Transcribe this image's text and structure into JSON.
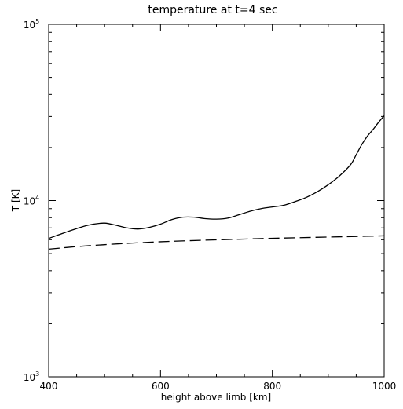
{
  "chart_data": {
    "type": "line",
    "title": "temperature at t=4 sec",
    "xlabel": "height above limb [km]",
    "ylabel": "T [K]",
    "xlim": [
      400,
      1000
    ],
    "ylim": [
      1000,
      100000
    ],
    "yscale": "log",
    "grid": false,
    "x_ticks": [
      400,
      600,
      800,
      1000
    ],
    "x_tick_labels": [
      "400",
      "600",
      "800",
      "1000"
    ],
    "y_ticks": [
      1000,
      10000,
      100000
    ],
    "y_tick_labels": [
      {
        "base": "10",
        "exp": "3"
      },
      {
        "base": "10",
        "exp": "4"
      },
      {
        "base": "10",
        "exp": "5"
      }
    ],
    "series": [
      {
        "style": "solid",
        "x": [
          400,
          430,
          460,
          480,
          500,
          520,
          540,
          560,
          580,
          600,
          620,
          640,
          660,
          680,
          700,
          720,
          740,
          760,
          780,
          800,
          820,
          840,
          860,
          880,
          900,
          920,
          940,
          950,
          960,
          970,
          980,
          990,
          1000
        ],
        "y": [
          6100,
          6600,
          7100,
          7350,
          7450,
          7250,
          7000,
          6900,
          7050,
          7350,
          7800,
          8050,
          8050,
          7900,
          7850,
          7950,
          8300,
          8700,
          9000,
          9200,
          9400,
          9850,
          10400,
          11200,
          12300,
          13800,
          16000,
          18200,
          20800,
          23200,
          25300,
          27800,
          30300
        ]
      },
      {
        "style": "dashed",
        "x": [
          400,
          450,
          500,
          550,
          600,
          650,
          700,
          750,
          800,
          850,
          900,
          950,
          1000
        ],
        "y": [
          5300,
          5480,
          5620,
          5740,
          5840,
          5920,
          5990,
          6050,
          6110,
          6160,
          6210,
          6260,
          6310
        ]
      }
    ]
  }
}
